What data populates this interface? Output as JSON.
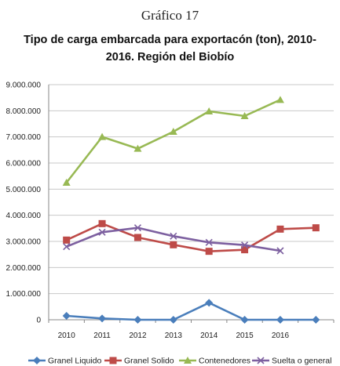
{
  "figure_label": "Gráfico 17",
  "chart_data": {
    "type": "line",
    "title_line1": "Tipo de carga embarcada para exportacón  (ton), 2010-",
    "title_line2": "2016. Región del Biobío",
    "x": [
      "2010",
      "2011",
      "2012",
      "2013",
      "2014",
      "2015",
      "2016",
      ""
    ],
    "ylim": [
      0,
      9000000
    ],
    "y_ticks": [
      0,
      1000000,
      2000000,
      3000000,
      4000000,
      5000000,
      6000000,
      7000000,
      8000000,
      9000000
    ],
    "y_tick_labels": [
      "0",
      "1.000.000",
      "2.000.000",
      "3.000.000",
      "4.000.000",
      "5.000.000",
      "6.000.000",
      "7.000.000",
      "8.000.000",
      "9.000.000"
    ],
    "grid": true,
    "legend_position": "bottom",
    "series": [
      {
        "name": "Granel Liquido",
        "color": "#4a7ebb",
        "marker": "diamond",
        "values": [
          150000,
          50000,
          0,
          0,
          650000,
          0,
          0,
          0
        ]
      },
      {
        "name": "Granel Solido",
        "color": "#be4b48",
        "marker": "square",
        "values": [
          3050000,
          3680000,
          3150000,
          2870000,
          2620000,
          2680000,
          3470000,
          3520000
        ]
      },
      {
        "name": "Contenedores",
        "color": "#98b954",
        "marker": "triangle",
        "values": [
          5250000,
          7000000,
          6550000,
          7200000,
          7980000,
          7800000,
          8420000,
          null
        ]
      },
      {
        "name": "Suelta o general",
        "color": "#7d60a0",
        "marker": "x",
        "values": [
          2800000,
          3350000,
          3520000,
          3200000,
          2960000,
          2860000,
          2640000,
          null
        ]
      }
    ]
  }
}
